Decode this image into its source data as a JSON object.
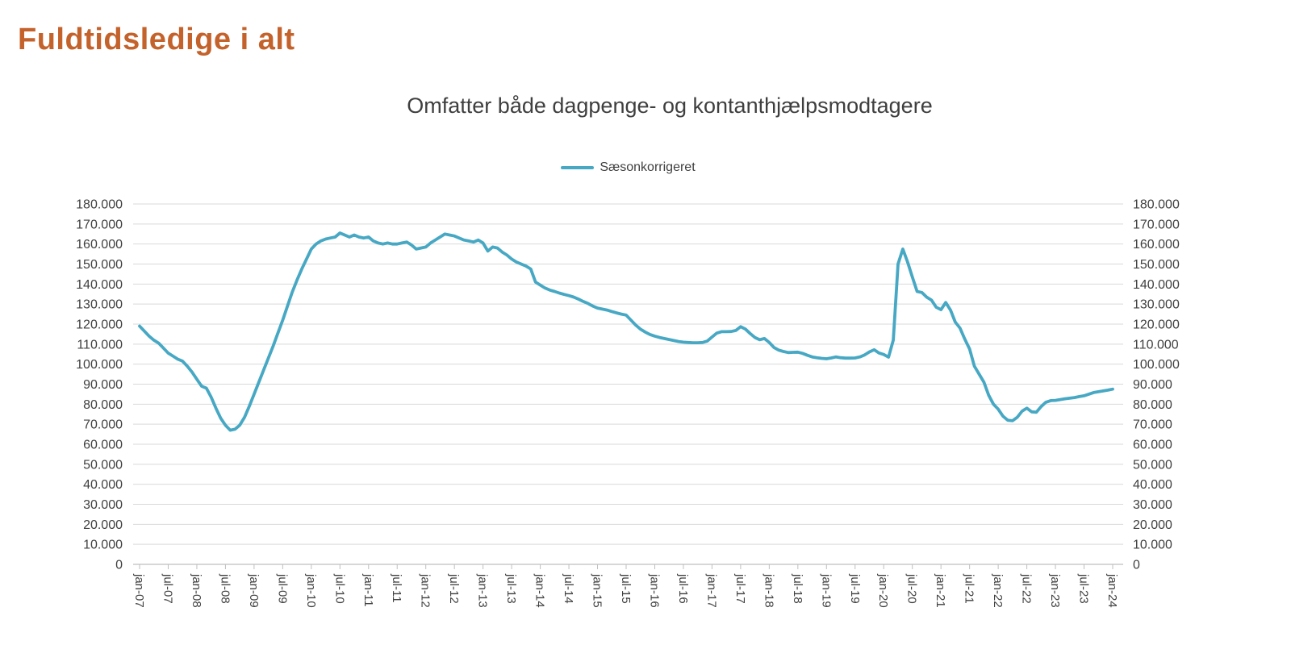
{
  "header": {
    "title": "Fuldtidsledige i alt",
    "title_color": "#C4622C"
  },
  "chart": {
    "title": "Omfatter både dagpenge- og kontanthjælpsmodtagere",
    "legend_label": "Sæsonkorrigeret",
    "line_color": "#47A8C4",
    "grid_color": "#D9D9D9",
    "axis_color": "#BFBFBF",
    "label_color": "#404040"
  },
  "chart_data": {
    "type": "line",
    "title": "Omfatter både dagpenge- og kontanthjælpsmodtagere",
    "legend": [
      "Sæsonkorrigeret"
    ],
    "legend_position": "top",
    "grid": true,
    "x_start": "jan-07",
    "x_end": "jan-24",
    "x_unit": "month",
    "x_tick_labels": [
      "jan-07",
      "jul-07",
      "jan-08",
      "jul-08",
      "jan-09",
      "jul-09",
      "jan-10",
      "jul-10",
      "jan-11",
      "jul-11",
      "jan-12",
      "jul-12",
      "jan-13",
      "jul-13",
      "jan-14",
      "jul-14",
      "jan-15",
      "jul-15",
      "jan-16",
      "jul-16",
      "jan-17",
      "jul-17",
      "jan-18",
      "jul-18",
      "jan-19",
      "jul-19",
      "jan-20",
      "jul-20",
      "jan-21",
      "jul-21",
      "jan-22",
      "jul-22",
      "jan-23",
      "jul-23",
      "jan-24"
    ],
    "ylim": [
      0,
      180000
    ],
    "y_tick_step": 10000,
    "y_tick_labels": [
      "0",
      "10.000",
      "20.000",
      "30.000",
      "40.000",
      "50.000",
      "60.000",
      "70.000",
      "80.000",
      "90.000",
      "100.000",
      "110.000",
      "120.000",
      "130.000",
      "140.000",
      "150.000",
      "160.000",
      "170.000",
      "180.000"
    ],
    "series": [
      {
        "name": "Sæsonkorrigeret",
        "color": "#47A8C4",
        "values": [
          119000,
          116500,
          114000,
          112000,
          110500,
          108000,
          105500,
          104000,
          102500,
          101500,
          99000,
          96000,
          92500,
          89000,
          88000,
          83500,
          78000,
          73000,
          69500,
          67000,
          67500,
          69500,
          73500,
          79000,
          85000,
          91000,
          97000,
          103000,
          109000,
          115500,
          122000,
          129000,
          136000,
          142000,
          147500,
          152500,
          157500,
          160000,
          161500,
          162500,
          163000,
          163500,
          165500,
          164500,
          163500,
          164500,
          163500,
          163000,
          163500,
          161500,
          160500,
          160000,
          160500,
          160000,
          160000,
          160500,
          161000,
          159500,
          157500,
          158000,
          158500,
          160500,
          162000,
          163500,
          165000,
          164500,
          164000,
          163000,
          162000,
          161500,
          161000,
          162000,
          160500,
          156500,
          158500,
          158000,
          156000,
          154500,
          152500,
          151000,
          150000,
          149000,
          147500,
          141000,
          139500,
          138000,
          137000,
          136300,
          135500,
          134800,
          134200,
          133500,
          132500,
          131300,
          130300,
          129000,
          128000,
          127500,
          127000,
          126300,
          125600,
          125000,
          124500,
          122000,
          119500,
          117500,
          116000,
          114800,
          114000,
          113300,
          112800,
          112300,
          111800,
          111300,
          111000,
          110800,
          110700,
          110700,
          110800,
          111500,
          113500,
          115500,
          116200,
          116200,
          116300,
          116800,
          118700,
          117500,
          115300,
          113300,
          112200,
          112800,
          110800,
          108300,
          107000,
          106300,
          105800,
          105900,
          106000,
          105400,
          104400,
          103600,
          103200,
          102900,
          102700,
          103100,
          103600,
          103200,
          103000,
          103000,
          103100,
          103600,
          104600,
          106100,
          107200,
          105600,
          104800,
          103500,
          112000,
          150000,
          157500,
          151000,
          143500,
          136300,
          135800,
          133500,
          132000,
          128400,
          127200,
          130800,
          127000,
          121000,
          118000,
          112500,
          107500,
          99000,
          95000,
          91000,
          84500,
          80000,
          77500,
          74000,
          72000,
          71700,
          73500,
          76500,
          78000,
          76200,
          76000,
          78800,
          81000,
          81800,
          81900,
          82300,
          82700,
          83000,
          83300,
          83800,
          84200,
          85000,
          85800,
          86200,
          86600,
          87000,
          87500
        ]
      }
    ]
  }
}
